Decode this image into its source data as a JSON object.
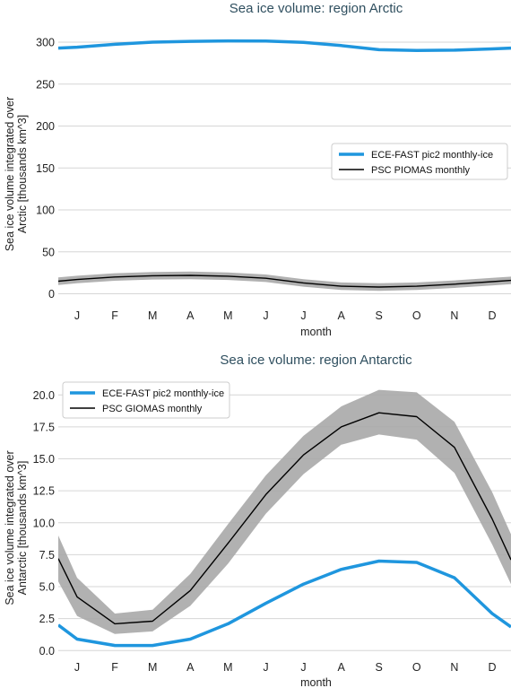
{
  "colors": {
    "model": "#1f96de",
    "obs": "#000000",
    "band": "#a9a9a9",
    "grid": "#d6d6d6",
    "title": "#2f4f5f"
  },
  "chart_data": [
    {
      "type": "line",
      "title": "Sea ice volume: region Arctic",
      "xlabel": "month",
      "ylabel": [
        "Sea ice volume integrated over",
        "Arctic [thousands km^3]"
      ],
      "categories": [
        "J",
        "F",
        "M",
        "A",
        "M",
        "J",
        "J",
        "A",
        "S",
        "O",
        "N",
        "D"
      ],
      "x_range": [
        0.5,
        12.5
      ],
      "yticks": [
        "0",
        "50",
        "100",
        "150",
        "200",
        "250",
        "300"
      ],
      "ylim": [
        -8,
        315
      ],
      "grid": true,
      "legend": "center-right",
      "series": [
        {
          "name": "ECE-FAST pic2 monthly-ice",
          "style": "thick",
          "x": [
            0.5,
            1,
            2,
            3,
            4,
            5,
            6,
            7,
            8,
            9,
            10,
            11,
            12,
            12.5
          ],
          "values": [
            293,
            294,
            297.5,
            300,
            301,
            301.5,
            301.3,
            299.8,
            296,
            291,
            290.2,
            290.5,
            292,
            293
          ]
        },
        {
          "name": "PSC PIOMAS monthly",
          "style": "thin",
          "x": [
            0.5,
            1,
            2,
            3,
            4,
            5,
            6,
            7,
            8,
            9,
            10,
            11,
            12,
            12.5
          ],
          "values": [
            15,
            17,
            20,
            21.5,
            22,
            21,
            18.5,
            13,
            9,
            8,
            9,
            11.5,
            14.5,
            16
          ],
          "band_low": [
            10.5,
            12.5,
            15.5,
            17,
            17.5,
            16.5,
            14,
            8.5,
            4.5,
            3.5,
            4.5,
            7,
            10,
            11.5
          ],
          "band_high": [
            19.5,
            21.5,
            24.5,
            26,
            26.5,
            25.5,
            23,
            17.5,
            13.5,
            12.5,
            13.5,
            16,
            19,
            20.5
          ]
        }
      ]
    },
    {
      "type": "line",
      "title": "Sea ice volume: region Antarctic",
      "xlabel": "month",
      "ylabel": [
        "Sea ice volume integrated over",
        "Antarctic [thousands km^3]"
      ],
      "categories": [
        "J",
        "F",
        "M",
        "A",
        "M",
        "J",
        "J",
        "A",
        "S",
        "O",
        "N",
        "D"
      ],
      "x_range": [
        0.5,
        12.5
      ],
      "yticks": [
        "0.0",
        "2.5",
        "5.0",
        "7.5",
        "10.0",
        "12.5",
        "15.0",
        "17.5",
        "20.0"
      ],
      "ylim": [
        -0.4,
        21.0
      ],
      "grid": true,
      "legend": "top-left",
      "series": [
        {
          "name": "ECE-FAST pic2 monthly-ice",
          "style": "thick",
          "x": [
            0.5,
            1,
            2,
            3,
            4,
            5,
            6,
            7,
            8,
            9,
            10,
            11,
            12,
            12.5
          ],
          "values": [
            2.0,
            0.9,
            0.4,
            0.4,
            0.9,
            2.1,
            3.7,
            5.2,
            6.35,
            7.0,
            6.9,
            5.7,
            2.9,
            1.85
          ],
          "band_low": null,
          "band_high": null
        },
        {
          "name": "PSC GIOMAS monthly",
          "style": "thin",
          "x": [
            0.5,
            1,
            2,
            3,
            4,
            5,
            6,
            7,
            8,
            9,
            10,
            11,
            12,
            12.5
          ],
          "values": [
            7.2,
            4.2,
            2.1,
            2.3,
            4.7,
            8.4,
            12.2,
            15.3,
            17.5,
            18.6,
            18.3,
            15.9,
            10.3,
            7.1
          ],
          "band_low": [
            5.4,
            2.7,
            1.3,
            1.5,
            3.5,
            6.8,
            10.7,
            13.8,
            16.1,
            16.9,
            16.5,
            13.9,
            8.3,
            5.2
          ],
          "band_high": [
            9.0,
            5.7,
            2.9,
            3.2,
            6.0,
            9.9,
            13.7,
            16.8,
            19.1,
            20.4,
            20.2,
            17.9,
            12.4,
            9.1
          ]
        }
      ]
    }
  ]
}
